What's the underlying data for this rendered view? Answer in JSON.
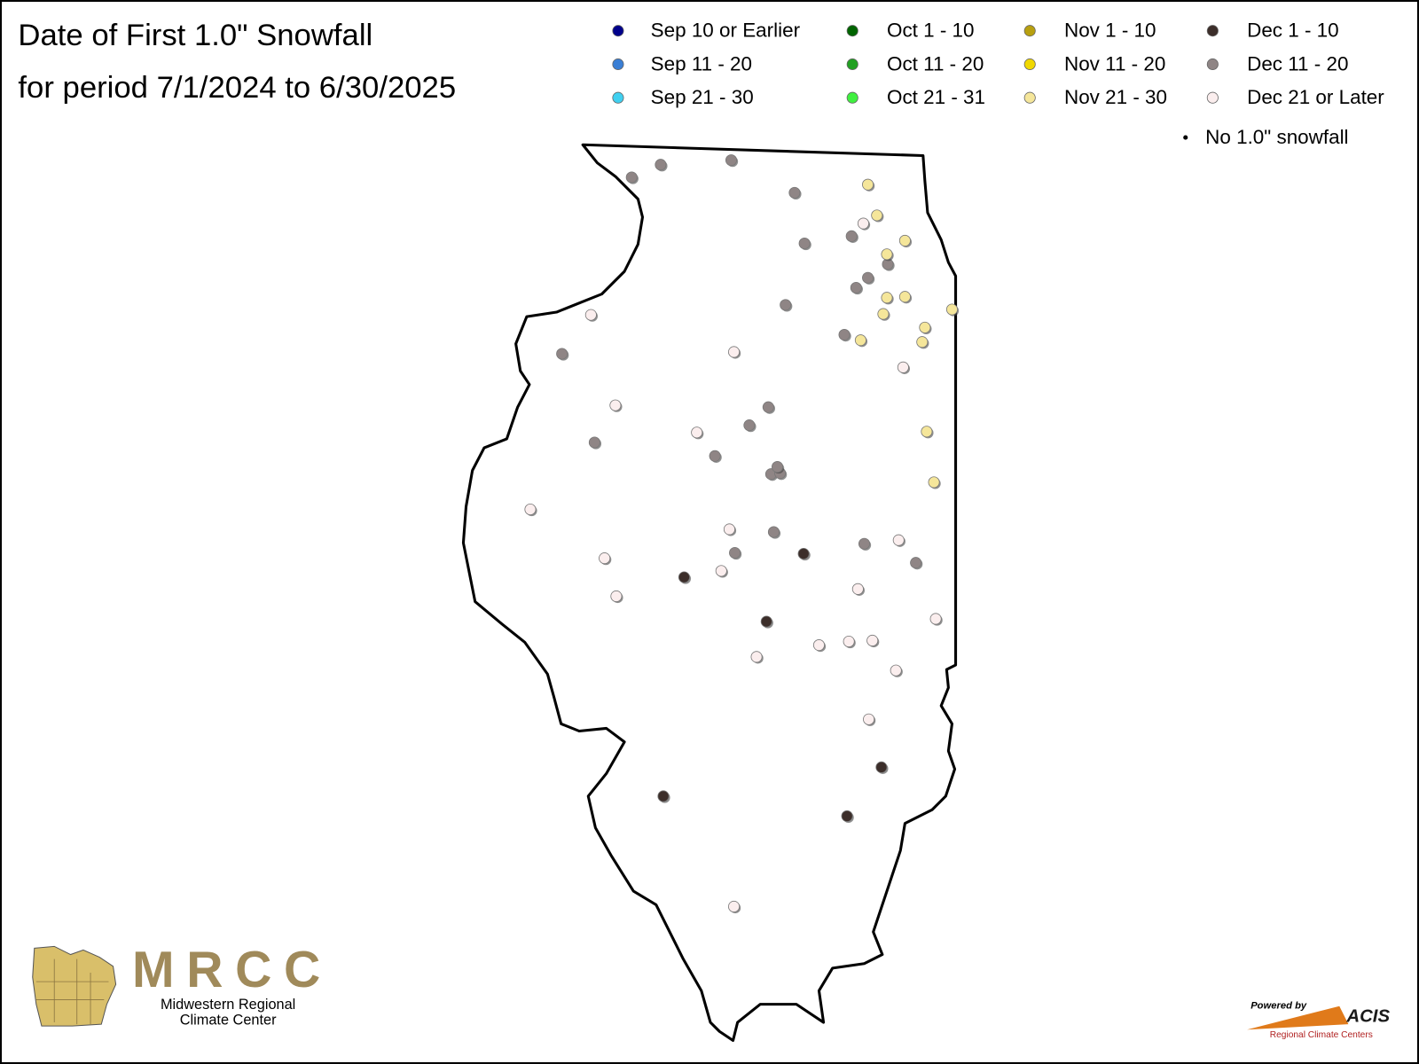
{
  "header": {
    "title": "Date of First 1.0\" Snowfall",
    "subtitle": "for period 7/1/2024 to 6/30/2025"
  },
  "legend": {
    "items": [
      {
        "label": "Sep 10 or Earlier",
        "color": "#00008b"
      },
      {
        "label": "Sep 11 - 20",
        "color": "#3a7fd5"
      },
      {
        "label": "Sep 21 - 30",
        "color": "#40d0f0"
      },
      {
        "label": "Oct 1 - 10",
        "color": "#006400"
      },
      {
        "label": "Oct 11 - 20",
        "color": "#22a022"
      },
      {
        "label": "Oct 21 - 31",
        "color": "#40f040"
      },
      {
        "label": "Nov 1 - 10",
        "color": "#b8a010"
      },
      {
        "label": "Nov 11 - 20",
        "color": "#f0d800"
      },
      {
        "label": "Nov 21 - 30",
        "color": "#f5e69a"
      },
      {
        "label": "Dec 1 - 10",
        "color": "#3c2e2a"
      },
      {
        "label": "Dec 11 - 20",
        "color": "#8f8585"
      },
      {
        "label": "Dec 21 or Later",
        "color": "#fbeeee"
      }
    ],
    "no_snowfall": "No 1.0\" snowfall"
  },
  "logos": {
    "mrcc": {
      "acronym": "MRCC",
      "line1": "Midwestern Regional",
      "line2": "Climate Center"
    },
    "acis": {
      "powered_by": "Powered by",
      "name": "ACIS",
      "tagline": "Regional Climate Centers"
    }
  }
}
